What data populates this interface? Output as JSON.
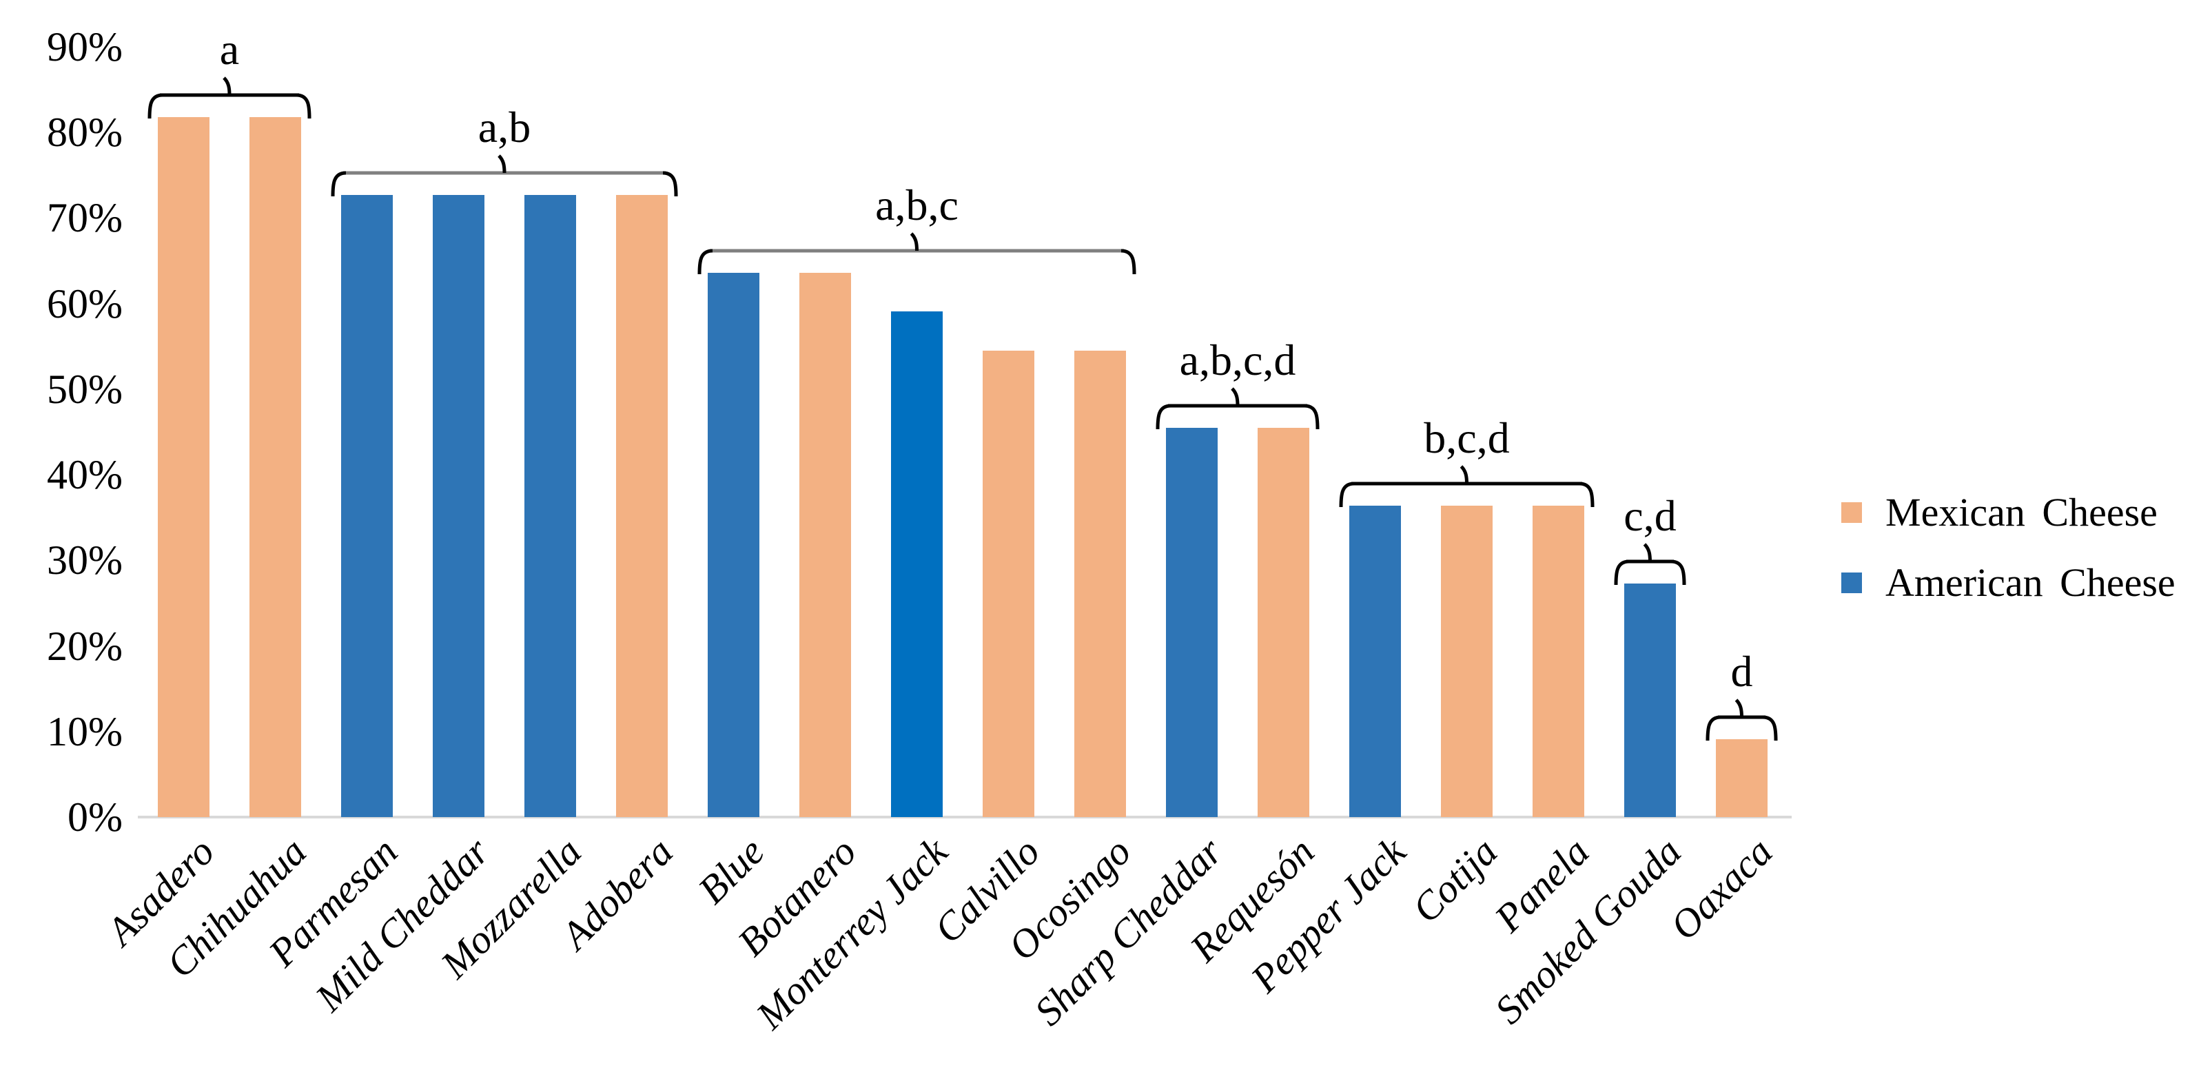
{
  "page": {
    "background": "#FFFFFF"
  },
  "chart_data": {
    "type": "bar",
    "title": "",
    "xlabel": "",
    "ylabel": "",
    "grid": false,
    "legend_position": "right",
    "y_axis": {
      "min": 0,
      "max": 90,
      "step": 10,
      "unit": "%",
      "ticks": [
        "0%",
        "10%",
        "20%",
        "30%",
        "40%",
        "50%",
        "60%",
        "70%",
        "80%",
        "90%"
      ]
    },
    "series": [
      {
        "name": "Mexican Cheese",
        "color": "#F3B183"
      },
      {
        "name": "American Cheese",
        "color": "#2E75B6"
      }
    ],
    "highlight_color": "#0070C0",
    "axis_line_color": "#D9D9D9",
    "bars": [
      {
        "label": "Asadero",
        "value": 81.8,
        "series": "Mexican Cheese"
      },
      {
        "label": "Chihuahua",
        "value": 81.8,
        "series": "Mexican Cheese"
      },
      {
        "label": "Parmesan",
        "value": 72.7,
        "series": "American Cheese"
      },
      {
        "label": "Mild Cheddar",
        "value": 72.7,
        "series": "American Cheese"
      },
      {
        "label": "Mozzarella",
        "value": 72.7,
        "series": "American Cheese"
      },
      {
        "label": "Adobera",
        "value": 72.7,
        "series": "Mexican Cheese"
      },
      {
        "label": "Blue",
        "value": 63.6,
        "series": "American Cheese"
      },
      {
        "label": "Botanero",
        "value": 63.6,
        "series": "Mexican Cheese"
      },
      {
        "label": "Monterrey Jack",
        "value": 59.1,
        "series": "American Cheese",
        "color": "#0070C0"
      },
      {
        "label": "Calvillo",
        "value": 54.5,
        "series": "Mexican Cheese"
      },
      {
        "label": "Ocosingo",
        "value": 54.5,
        "series": "Mexican Cheese"
      },
      {
        "label": "Sharp Cheddar",
        "value": 45.5,
        "series": "American Cheese"
      },
      {
        "label": "Requesón",
        "value": 45.5,
        "series": "Mexican Cheese"
      },
      {
        "label": "Pepper Jack",
        "value": 36.4,
        "series": "American Cheese"
      },
      {
        "label": "Cotija",
        "value": 36.4,
        "series": "Mexican Cheese"
      },
      {
        "label": "Panela",
        "value": 36.4,
        "series": "Mexican Cheese"
      },
      {
        "label": "Smoked Gouda",
        "value": 27.3,
        "series": "American Cheese"
      },
      {
        "label": "Oaxaca",
        "value": 9.1,
        "series": "Mexican Cheese"
      }
    ],
    "significance_brackets": [
      {
        "label": "a",
        "from_index": 0,
        "to_index": 1,
        "line_color": "#000000"
      },
      {
        "label": "a,b",
        "from_index": 2,
        "to_index": 5,
        "line_color": "#808080"
      },
      {
        "label": "a,b,c",
        "from_index": 6,
        "to_index": 10,
        "line_color": "#808080"
      },
      {
        "label": "a,b,c,d",
        "from_index": 11,
        "to_index": 12,
        "line_color": "#000000"
      },
      {
        "label": "b,c,d",
        "from_index": 13,
        "to_index": 15,
        "line_color": "#000000"
      },
      {
        "label": "c,d",
        "from_index": 16,
        "to_index": 16,
        "line_color": "#000000"
      },
      {
        "label": "d",
        "from_index": 17,
        "to_index": 17,
        "line_color": "#000000"
      }
    ]
  }
}
